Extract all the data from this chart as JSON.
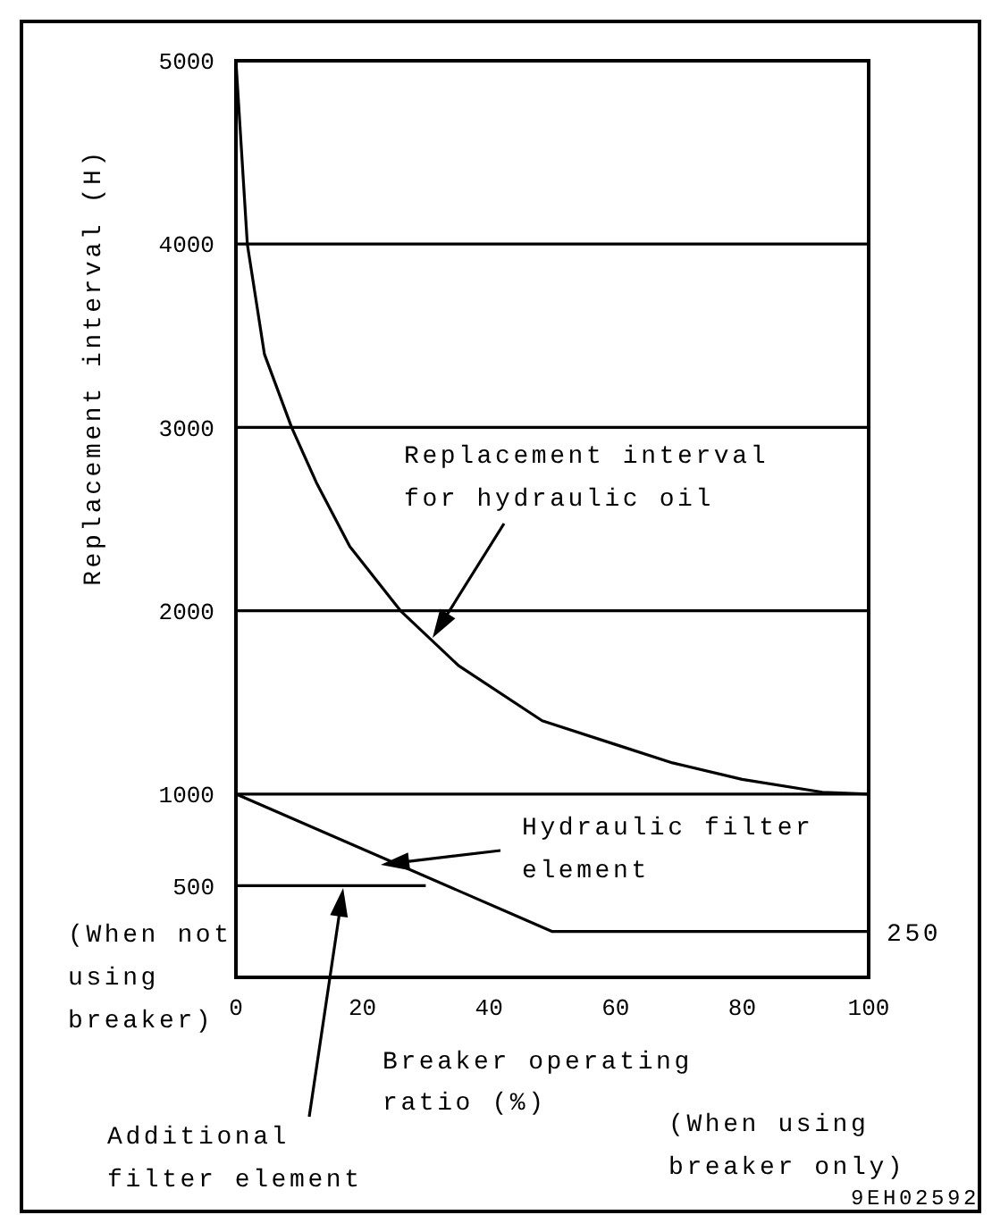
{
  "chart_data": {
    "type": "line",
    "ylabel": "Replacement interval (H)",
    "xlabel": "Breaker operating\nratio (%)",
    "xlim": [
      0,
      100
    ],
    "xticks": [
      0,
      20,
      40,
      60,
      80,
      100
    ],
    "ylim": [
      0,
      5000
    ],
    "yticks": [
      500,
      1000,
      2000,
      3000,
      4000,
      5000
    ],
    "series": [
      {
        "color": "#000000",
        "x": [
          0,
          1.8,
          4.5,
          8.8,
          12.7,
          18,
          26,
          35.2,
          48.4,
          60,
          69,
          80,
          92.7,
          100
        ],
        "values": [
          5000,
          4000,
          3400,
          3000,
          2700,
          2350,
          2000,
          1700,
          1400,
          1270,
          1170,
          1080,
          1010,
          1000
        ]
      },
      {
        "color": "#000000",
        "x": [
          0,
          50,
          100
        ],
        "values": [
          1000,
          250,
          250
        ]
      },
      {
        "color": "#000000",
        "x": [
          0,
          30
        ],
        "values": [
          500,
          500
        ]
      }
    ],
    "ref_lines": [
      {
        "axis": "y",
        "value": 1000,
        "color": "#000000"
      },
      {
        "axis": "y",
        "value": 2000,
        "color": "#000000"
      },
      {
        "axis": "y",
        "value": 3000,
        "color": "#000000"
      },
      {
        "axis": "y",
        "value": 4000,
        "color": "#000000"
      }
    ],
    "marker": "none",
    "line_style": "solid",
    "grid": false,
    "annotations": [
      "Replacement interval\nfor hydraulic oil",
      "Hydraulic filter\nelement",
      "Additional\nfilter element",
      "(When not\nusing\nbreaker)",
      "(When using\nbreaker only)",
      {
        "text": "250",
        "x": 100,
        "y": 250
      },
      "9EH02592"
    ]
  }
}
